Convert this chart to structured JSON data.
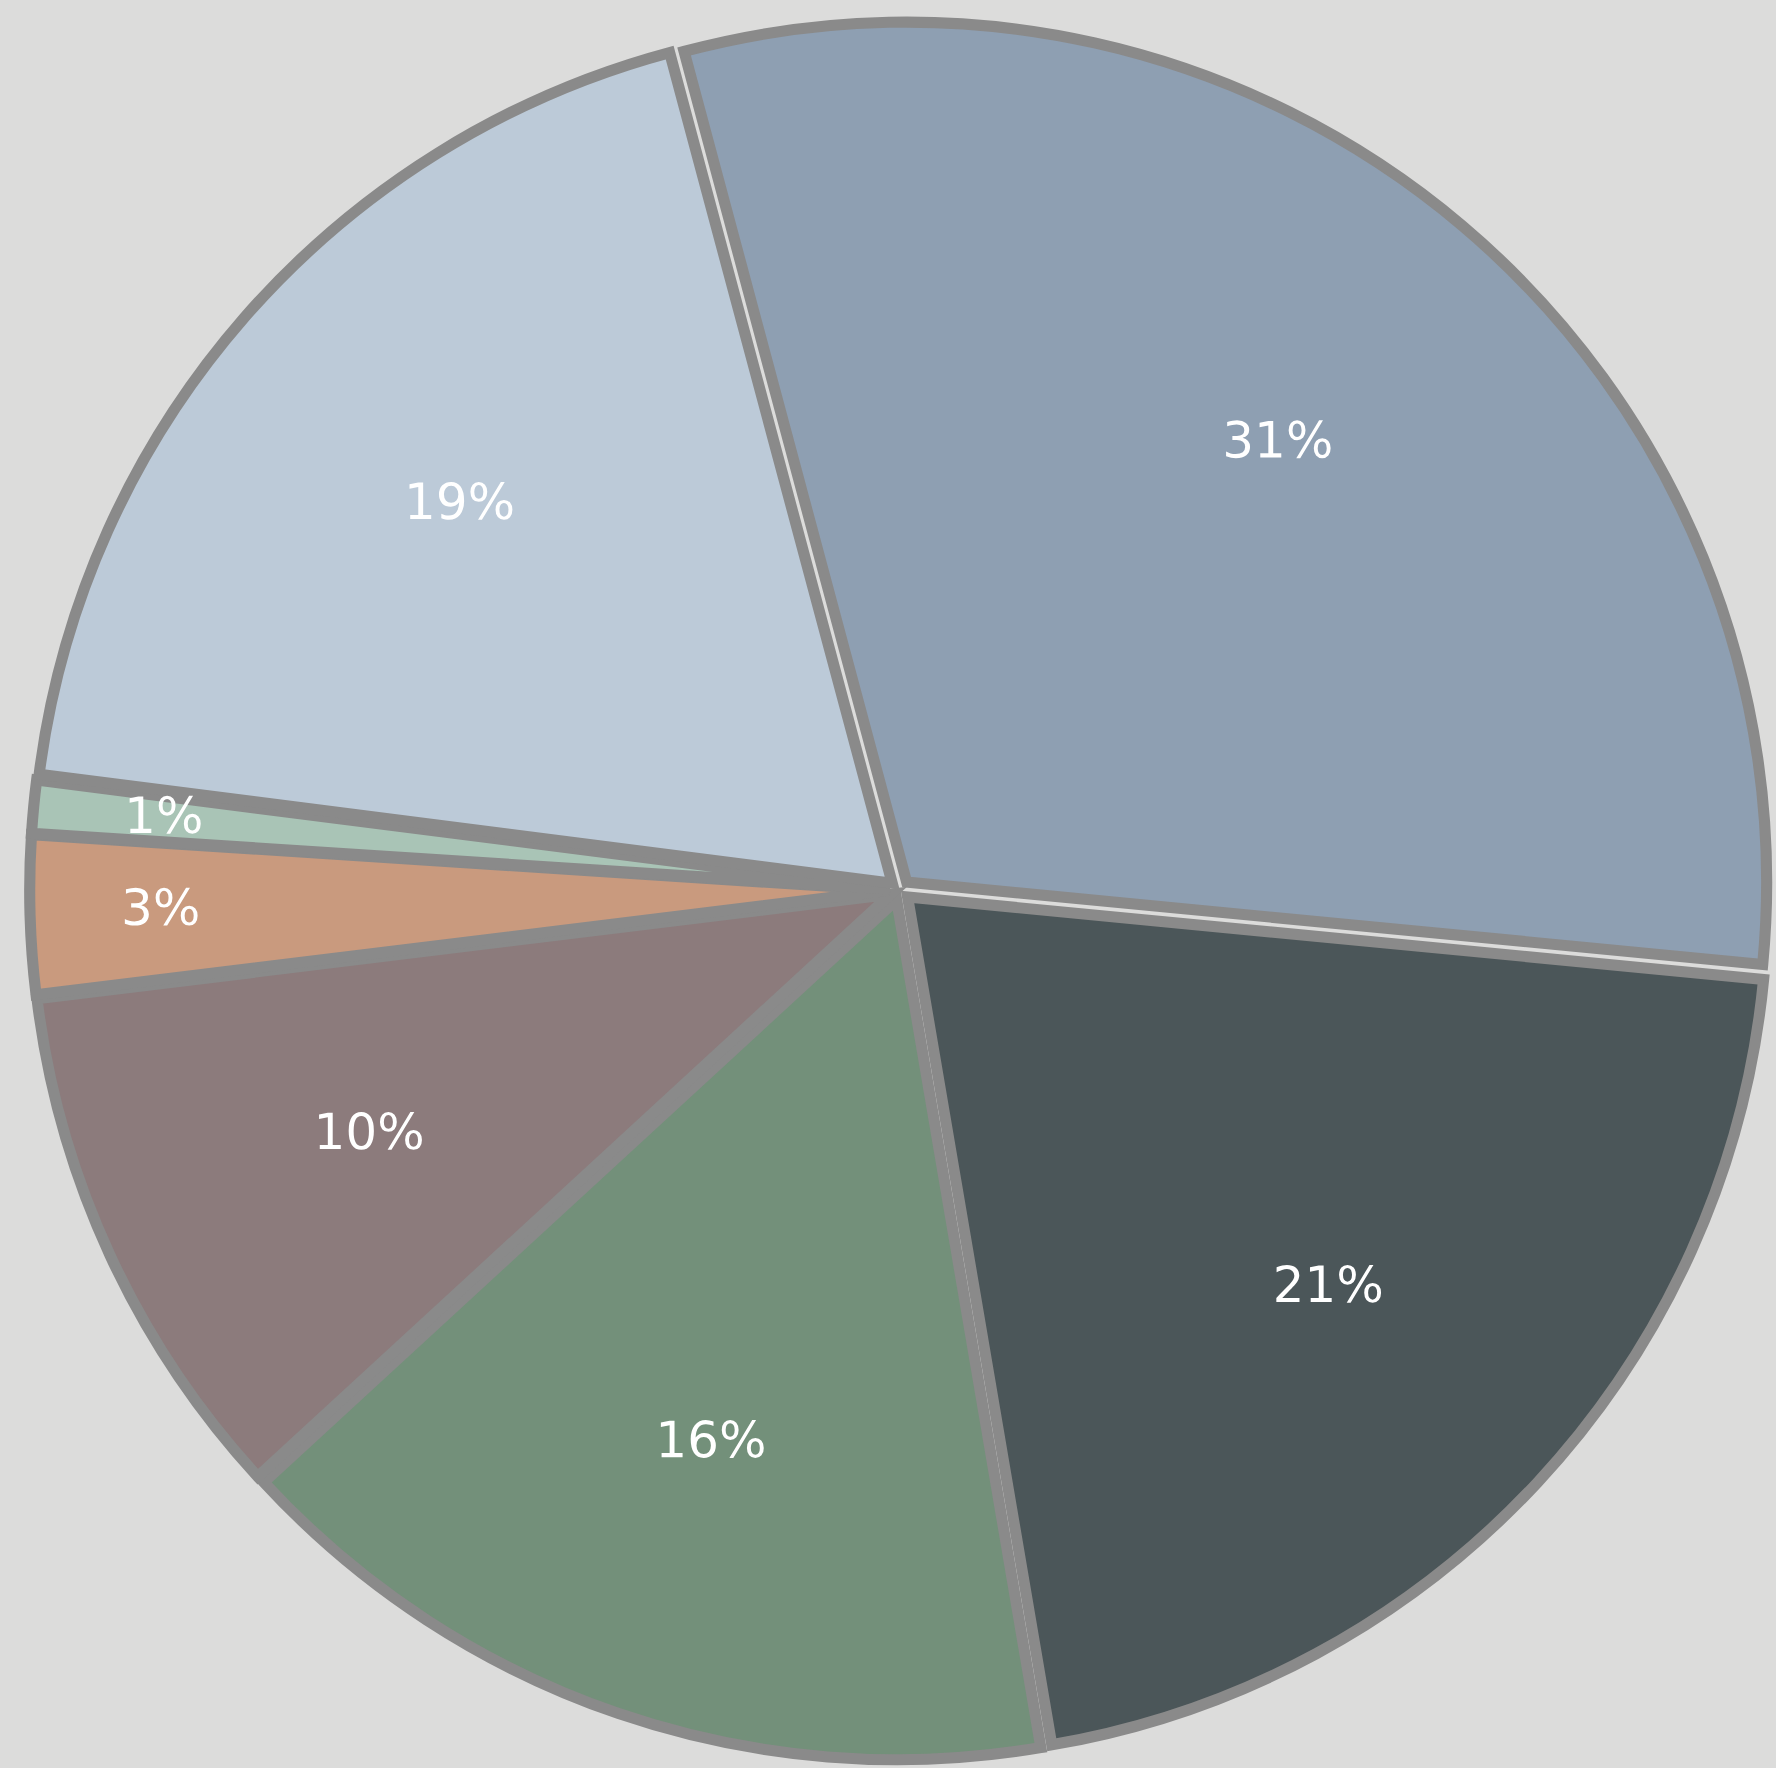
{
  "chart_data": {
    "type": "pie",
    "categories": [
      null,
      null,
      null,
      null,
      null,
      null,
      null
    ],
    "values": [
      31,
      21,
      16,
      10,
      3,
      1,
      19
    ],
    "value_labels": [
      "31%",
      "21%",
      "16%",
      "10%",
      "3%",
      "1%",
      "19%"
    ],
    "colors": [
      "#8e9fb2",
      "#4b5659",
      "#73907a",
      "#8c7b7c",
      "#c99a7e",
      "#a9c4b6",
      "#bccad8"
    ]
  }
}
